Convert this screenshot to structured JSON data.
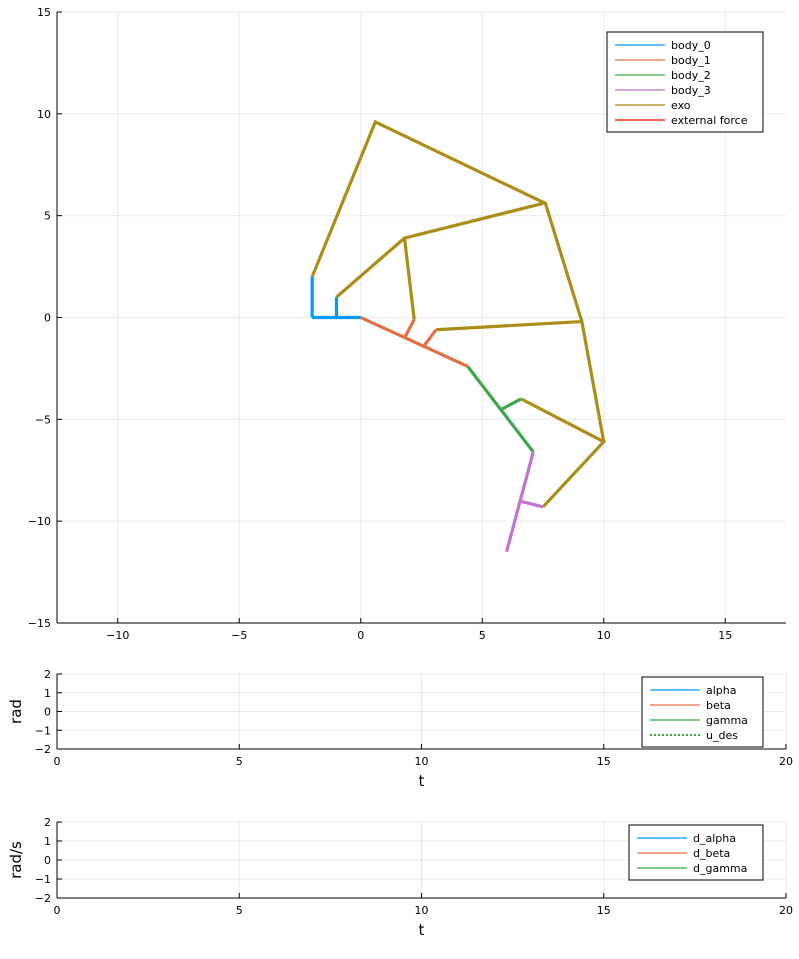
{
  "chart_data": [
    {
      "type": "line",
      "xlim": [
        -12.5,
        17.5
      ],
      "ylim": [
        -15,
        15
      ],
      "xticks": [
        -10,
        -5,
        0,
        5,
        10,
        15
      ],
      "yticks": [
        -15,
        -10,
        -5,
        0,
        5,
        10,
        15
      ],
      "xtick_labels": [
        "−10",
        "−5",
        "0",
        "5",
        "10",
        "15"
      ],
      "ytick_labels": [
        "−15",
        "−10",
        "−5",
        "0",
        "5",
        "10",
        "15"
      ],
      "xlabel": "",
      "ylabel": "",
      "grid": true,
      "legend_position": "top-right",
      "series": [
        {
          "name": "body_0",
          "color": "#009AFA",
          "segments": [
            [
              [
                -2.0,
                0.0
              ],
              [
                -2.0,
                2.0
              ]
            ],
            [
              [
                -2.0,
                0.0
              ],
              [
                0.0,
                0.0
              ]
            ],
            [
              [
                -1.0,
                0.0
              ],
              [
                -1.0,
                1.0
              ]
            ]
          ]
        },
        {
          "name": "body_1",
          "color": "#E36F47",
          "segments": [
            [
              [
                0.0,
                0.0
              ],
              [
                4.4,
                -2.4
              ]
            ],
            [
              [
                1.8,
                -1.0
              ],
              [
                2.2,
                -0.1
              ]
            ],
            [
              [
                2.6,
                -1.4
              ],
              [
                3.1,
                -0.6
              ]
            ]
          ]
        },
        {
          "name": "body_2",
          "color": "#3EA44E",
          "segments": [
            [
              [
                4.4,
                -2.4
              ],
              [
                7.1,
                -6.6
              ]
            ],
            [
              [
                5.8,
                -4.5
              ],
              [
                6.6,
                -4.0
              ]
            ]
          ]
        },
        {
          "name": "body_3",
          "color": "#C271D2",
          "segments": [
            [
              [
                7.1,
                -6.6
              ],
              [
                6.0,
                -11.5
              ]
            ],
            [
              [
                6.5,
                -9.0
              ],
              [
                7.5,
                -9.3
              ]
            ]
          ]
        },
        {
          "name": "exo",
          "color": "#AC8D18",
          "segments": [
            [
              [
                -2.0,
                2.0
              ],
              [
                0.6,
                9.6
              ],
              [
                7.6,
                5.6
              ],
              [
                9.1,
                -0.2
              ],
              [
                10.0,
                -6.1
              ]
            ],
            [
              [
                -1.0,
                1.0
              ],
              [
                1.8,
                3.9
              ],
              [
                7.5,
                5.6
              ]
            ],
            [
              [
                1.8,
                3.9
              ],
              [
                2.2,
                -0.1
              ]
            ],
            [
              [
                3.1,
                -0.6
              ],
              [
                9.1,
                -0.2
              ]
            ],
            [
              [
                6.6,
                -4.0
              ],
              [
                10.0,
                -6.1
              ],
              [
                7.5,
                -9.3
              ]
            ]
          ]
        },
        {
          "name": "external force",
          "color": "#FF0000",
          "segments": []
        }
      ]
    },
    {
      "type": "line",
      "xlim": [
        0,
        20
      ],
      "ylim": [
        -2,
        2
      ],
      "xticks": [
        0,
        5,
        10,
        15,
        20
      ],
      "yticks": [
        -2,
        -1,
        0,
        1,
        2
      ],
      "xtick_labels": [
        "0",
        "5",
        "10",
        "15",
        "20"
      ],
      "ytick_labels": [
        "−2",
        "−1",
        "0",
        "1",
        "2"
      ],
      "xlabel": "t",
      "ylabel": "rad",
      "grid": true,
      "legend_position": "top-right",
      "series": [
        {
          "name": "alpha",
          "color": "#009AFA",
          "style": "solid",
          "values": []
        },
        {
          "name": "beta",
          "color": "#E36F47",
          "style": "solid",
          "values": []
        },
        {
          "name": "gamma",
          "color": "#3EA44E",
          "style": "solid",
          "values": []
        },
        {
          "name": "u_des",
          "color": "#3EA44E",
          "style": "dotted",
          "values": []
        }
      ]
    },
    {
      "type": "line",
      "xlim": [
        0,
        20
      ],
      "ylim": [
        -2,
        2
      ],
      "xticks": [
        0,
        5,
        10,
        15,
        20
      ],
      "yticks": [
        -2,
        -1,
        0,
        1,
        2
      ],
      "xtick_labels": [
        "0",
        "5",
        "10",
        "15",
        "20"
      ],
      "ytick_labels": [
        "−2",
        "−1",
        "0",
        "1",
        "2"
      ],
      "xlabel": "t",
      "ylabel": "rad/s",
      "grid": true,
      "legend_position": "top-right",
      "series": [
        {
          "name": "d_alpha",
          "color": "#009AFA",
          "style": "solid",
          "values": []
        },
        {
          "name": "d_beta",
          "color": "#E36F47",
          "style": "solid",
          "values": []
        },
        {
          "name": "d_gamma",
          "color": "#3EA44E",
          "style": "solid",
          "values": []
        }
      ]
    }
  ]
}
